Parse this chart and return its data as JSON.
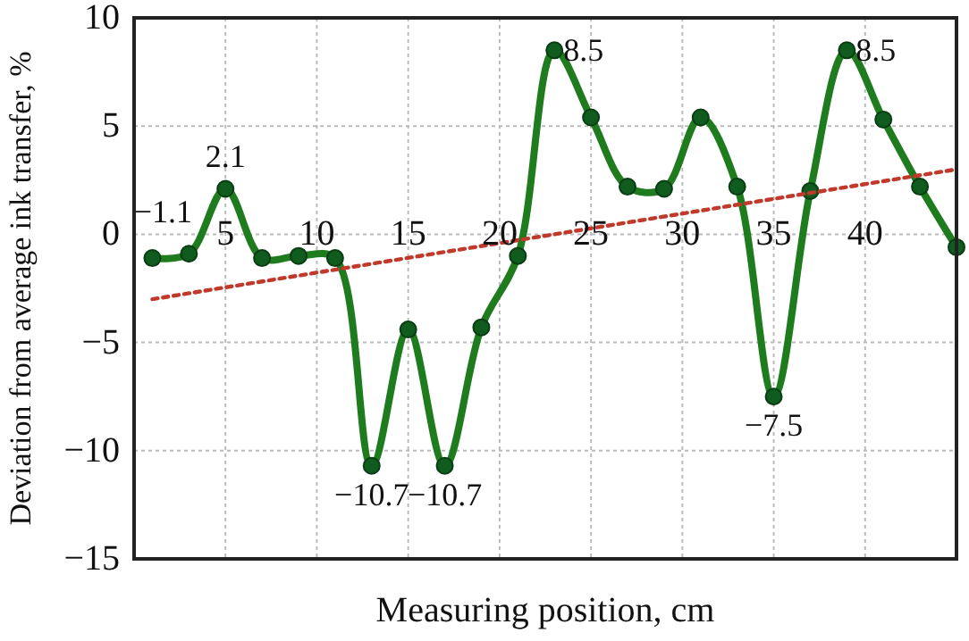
{
  "chart_data": {
    "type": "line",
    "xlabel": "Measuring position, cm",
    "ylabel": "Deviation from average ink transfer, %",
    "xlim": [
      0,
      45
    ],
    "ylim": [
      -15,
      10
    ],
    "xticks": [
      5,
      10,
      15,
      20,
      25,
      30,
      35,
      40
    ],
    "yticks": [
      -15,
      -10,
      -5,
      0,
      5,
      10
    ],
    "grid": true,
    "series": [
      {
        "color": "#1e7b1e",
        "marker": "circle",
        "line_style": "solid",
        "x": [
          1,
          3,
          5,
          7,
          9,
          11,
          13,
          15,
          17,
          19,
          21,
          23,
          25,
          27,
          29,
          31,
          33,
          35,
          37,
          39,
          41,
          43,
          45
        ],
        "values": [
          -1.1,
          -0.9,
          2.1,
          -1.1,
          -1.0,
          -1.1,
          -10.7,
          -4.4,
          -10.7,
          -4.3,
          -1.0,
          8.5,
          5.4,
          2.2,
          2.1,
          5.4,
          2.2,
          -7.5,
          2.0,
          8.5,
          5.3,
          2.2,
          -0.6
        ],
        "value_labels": [
          "−1.1",
          null,
          "2.1",
          null,
          null,
          null,
          "−10.7",
          null,
          "−10.7",
          null,
          null,
          "8.5",
          null,
          null,
          null,
          null,
          null,
          "−7.5",
          null,
          "8.5",
          null,
          null,
          null
        ]
      },
      {
        "color": "#c0392b",
        "marker": "none",
        "line_style": "dotted",
        "x": [
          1,
          45
        ],
        "values": [
          -3.0,
          3.0
        ]
      }
    ]
  }
}
